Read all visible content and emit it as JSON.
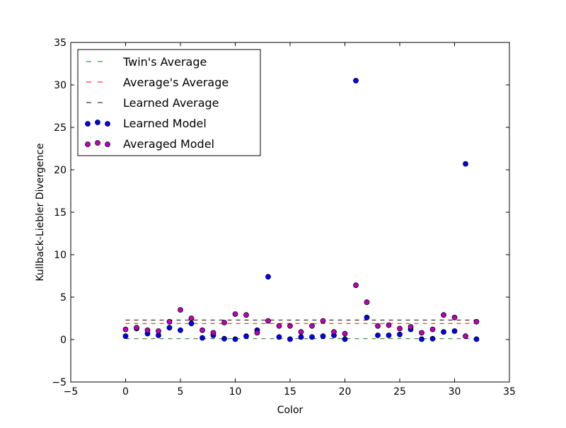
{
  "chart_data": {
    "type": "scatter",
    "title": "",
    "xlabel": "Color",
    "ylabel": "Kullback-Liebler Divergence",
    "xlim": [
      -5,
      35
    ],
    "ylim": [
      -5,
      35
    ],
    "xticks": [
      -5,
      0,
      5,
      10,
      15,
      20,
      25,
      30,
      35
    ],
    "yticks": [
      -5,
      0,
      5,
      10,
      15,
      20,
      25,
      30,
      35
    ],
    "grid": false,
    "legend_position": "top-left",
    "lines": [
      {
        "name": "Twin's Average",
        "y": 0.1,
        "x_range": [
          0,
          32
        ],
        "color": "#008000",
        "style": "dashed"
      },
      {
        "name": "Average's Average",
        "y": 1.9,
        "x_range": [
          0,
          32
        ],
        "color": "#ff0000",
        "style": "dashed"
      },
      {
        "name": "Learned Average",
        "y": 2.3,
        "x_range": [
          0,
          32
        ],
        "color": "#000000",
        "style": "dashed"
      }
    ],
    "series": [
      {
        "name": "Learned Model",
        "color": "#0000ff",
        "x": [
          0,
          1,
          2,
          3,
          4,
          5,
          6,
          7,
          8,
          9,
          10,
          11,
          12,
          13,
          14,
          15,
          16,
          17,
          18,
          19,
          20,
          21,
          22,
          23,
          24,
          25,
          26,
          27,
          28,
          29,
          30,
          31,
          32
        ],
        "y": [
          0.4,
          1.3,
          0.7,
          0.5,
          1.4,
          1.1,
          1.9,
          0.2,
          0.5,
          0.1,
          0.05,
          0.4,
          1.1,
          7.4,
          0.3,
          0.05,
          0.3,
          0.3,
          0.4,
          0.5,
          0.05,
          30.5,
          2.6,
          0.5,
          0.5,
          0.6,
          1.2,
          0.05,
          0.1,
          0.9,
          1.0,
          20.7,
          0.05
        ]
      },
      {
        "name": "Averaged Model",
        "color": "#bf00bf",
        "x": [
          0,
          1,
          2,
          3,
          4,
          5,
          6,
          7,
          8,
          9,
          10,
          11,
          12,
          13,
          14,
          15,
          16,
          17,
          18,
          19,
          20,
          21,
          22,
          23,
          24,
          25,
          26,
          27,
          28,
          29,
          30,
          31,
          32
        ],
        "y": [
          1.2,
          1.4,
          1.1,
          1.0,
          2.1,
          3.5,
          2.5,
          1.1,
          0.8,
          2.0,
          3.0,
          2.9,
          0.8,
          2.2,
          1.6,
          1.6,
          0.9,
          1.6,
          2.2,
          0.9,
          0.7,
          6.4,
          4.4,
          1.6,
          1.7,
          1.3,
          1.5,
          0.8,
          1.2,
          2.9,
          2.6,
          0.4,
          2.1
        ]
      }
    ]
  }
}
